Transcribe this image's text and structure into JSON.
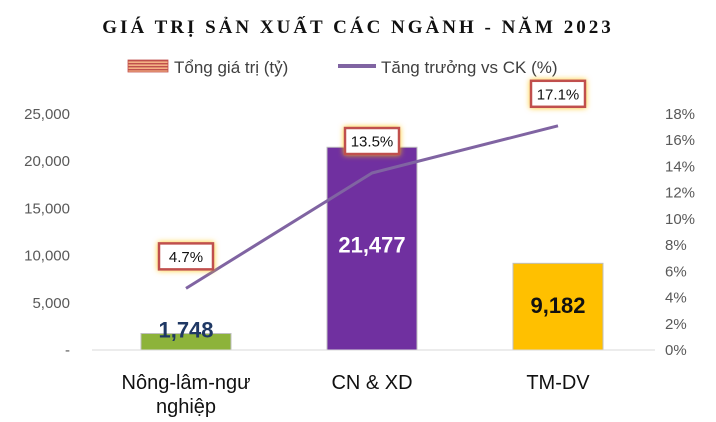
{
  "chart_data": {
    "type": "bar",
    "title": "GIÁ TRỊ SẢN XUẤT CÁC NGÀNH - NĂM 2023",
    "legend_placement": "top",
    "categories": [
      [
        "Nông-lâm-ngư",
        "nghiệp"
      ],
      [
        "CN & XD"
      ],
      [
        "TM-DV"
      ]
    ],
    "series": [
      {
        "name": "Tổng giá trị (tỷ)",
        "kind": "bar",
        "axis": "left",
        "values": [
          1748,
          21477,
          9182
        ],
        "labels": [
          "1,748",
          "21,477",
          "9,182"
        ],
        "colors": [
          "#8db33a",
          "#7030a0",
          "#ffc000"
        ],
        "label_colors": [
          "#1f3864",
          "#ffffff",
          "#111111"
        ]
      },
      {
        "name": "Tăng trưởng vs CK (%)",
        "kind": "line",
        "axis": "right",
        "values": [
          4.7,
          13.5,
          17.1
        ],
        "labels": [
          "4.7%",
          "13.5%",
          "17.1%"
        ],
        "color": "#8064a2"
      }
    ],
    "y_left": {
      "range": [
        0,
        25000
      ],
      "ticks": [
        0,
        5000,
        10000,
        15000,
        20000,
        25000
      ],
      "tick_labels": [
        "-",
        "5,000",
        "10,000",
        "15,000",
        "20,000",
        "25,000"
      ]
    },
    "y_right": {
      "range": [
        0,
        18
      ],
      "ticks": [
        0,
        2,
        4,
        6,
        8,
        10,
        12,
        14,
        16,
        18
      ],
      "tick_labels": [
        "0%",
        "2%",
        "4%",
        "6%",
        "8%",
        "10%",
        "12%",
        "14%",
        "16%",
        "18%"
      ]
    },
    "grid": false
  }
}
